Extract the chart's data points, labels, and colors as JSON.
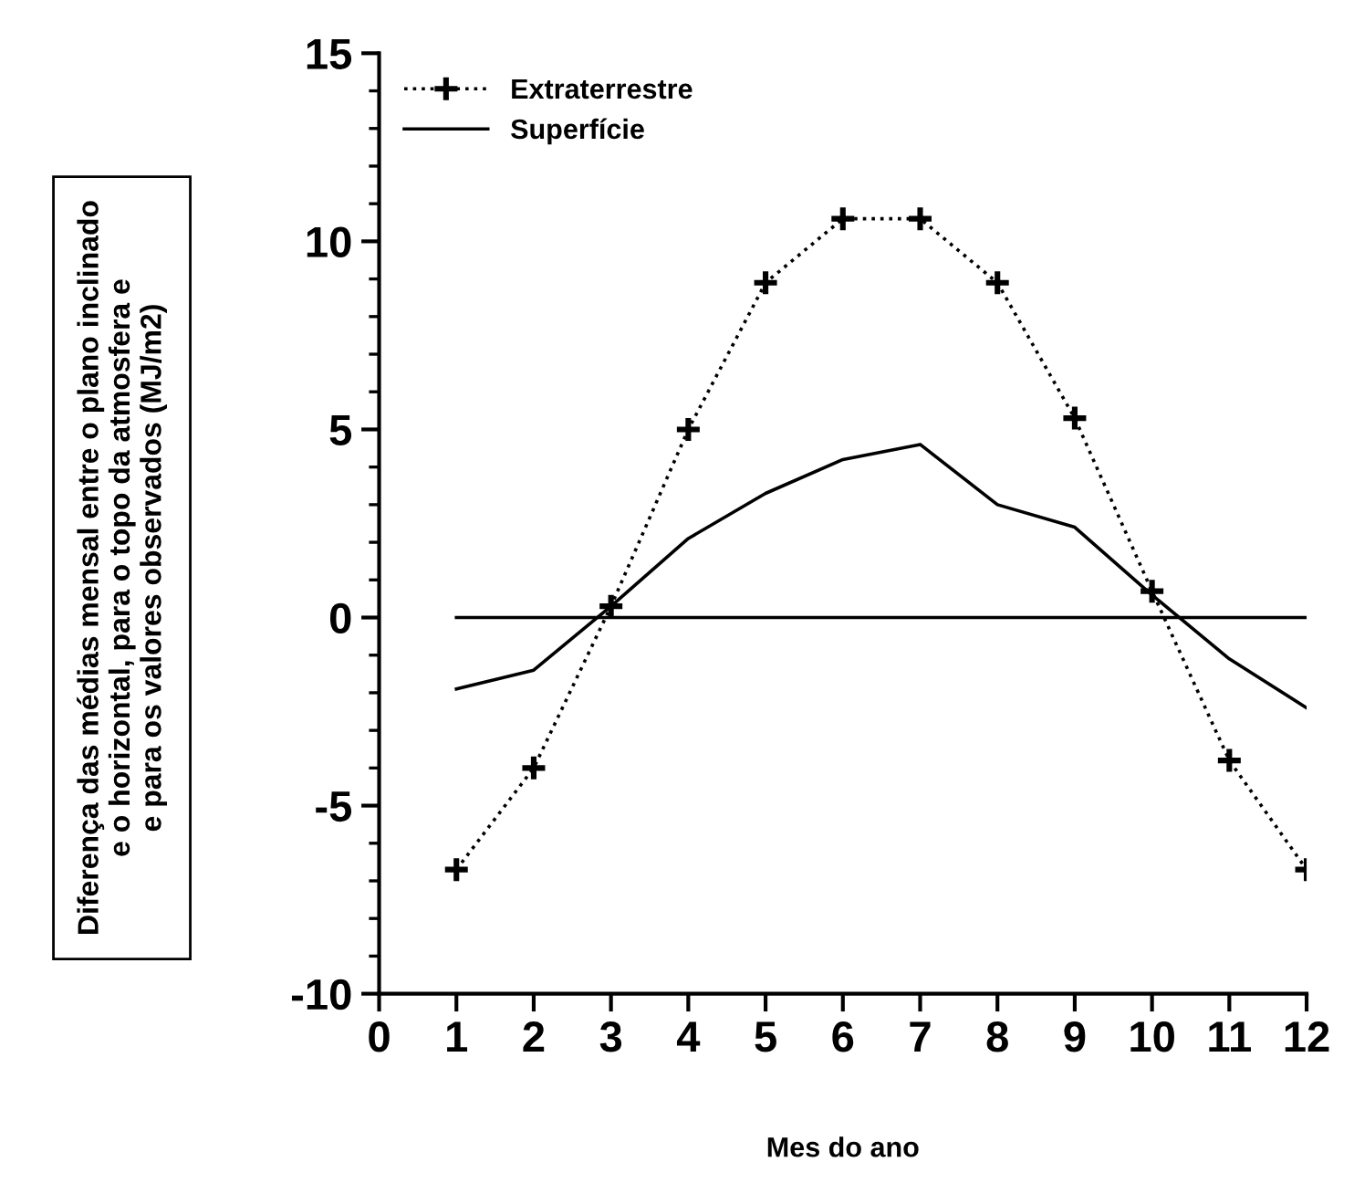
{
  "chart_data": {
    "type": "line",
    "xlabel": "Mes do ano",
    "ylabel": "Diferença das médias mensal entre o plano inclinado\ne o horizontal, para o topo da atmosfera e\ne para os valores observados (MJ/m2)",
    "x": [
      1,
      2,
      3,
      4,
      5,
      6,
      7,
      8,
      9,
      10,
      11,
      12
    ],
    "series": [
      {
        "name": "Extraterrestre",
        "color": "#000000",
        "marker": "cross",
        "line_style": "dotted",
        "values": [
          -6.7,
          -4.0,
          0.3,
          5.0,
          8.9,
          10.6,
          10.6,
          8.9,
          5.3,
          0.7,
          -3.8,
          -6.7
        ]
      },
      {
        "name": "Superfície",
        "color": "#000000",
        "marker": "none",
        "line_style": "solid",
        "values": [
          -1.9,
          -1.4,
          0.3,
          2.1,
          3.3,
          4.2,
          4.6,
          3.0,
          2.4,
          0.6,
          -1.1,
          -2.4
        ]
      },
      {
        "color": "#000000",
        "marker": "none",
        "line_style": "solid",
        "values": [
          0,
          0,
          0,
          0,
          0,
          0,
          0,
          0,
          0,
          0,
          0,
          0
        ]
      }
    ],
    "xlim": [
      0,
      12
    ],
    "xticks": [
      0,
      1,
      2,
      3,
      4,
      5,
      6,
      7,
      8,
      9,
      10,
      11,
      12
    ],
    "ylim": [
      -10,
      15
    ],
    "yticks": [
      -10,
      -5,
      0,
      5,
      10,
      15
    ],
    "legend": "top left",
    "grid": false
  }
}
